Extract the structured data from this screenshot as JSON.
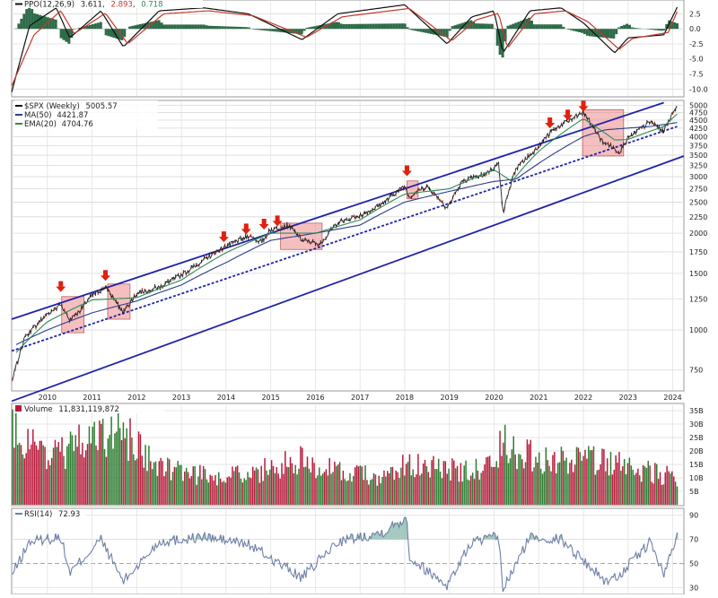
{
  "ppo_panel": {
    "label": "PPO(12,26,9)",
    "ppo_value": "3.611",
    "signal_value": "2.893",
    "histogram_value": "0.718",
    "ticks": [
      "2.5",
      "0.0",
      "-2.5",
      "-5.0",
      "-7.5",
      "-10.0"
    ],
    "colors": {
      "ppo": "#111111",
      "signal": "#c0392b",
      "histogram": "#2e6b48"
    }
  },
  "price_panel": {
    "symbol_label": "$SPX (Weekly)",
    "last_value": "5005.57",
    "ma_label": "MA(50)",
    "ma_value": "4421.87",
    "ema_label": "EMA(20)",
    "ema_value": "4704.76",
    "colors": {
      "up": "#1a1a1a",
      "down": "#d02020",
      "ma": "#2c3e8a",
      "ema": "#2e8b57",
      "channel": "#1f24a8",
      "box": "#e88080",
      "arrow": "#e02010"
    }
  },
  "volume_panel": {
    "label": "Volume",
    "value": "11,831,119,872",
    "ticks": [
      "35B",
      "30B",
      "25B",
      "20B",
      "15B",
      "10B",
      "5B"
    ],
    "colors": {
      "up": "#2e7d32",
      "down": "#b71c3c"
    }
  },
  "rsi_panel": {
    "label": "RSI(14)",
    "value": "72.93",
    "ticks": [
      "90",
      "70",
      "50",
      "30"
    ],
    "colors": {
      "line": "#6f7fa8",
      "fill": "#7fb3a6"
    }
  },
  "chart_data": [
    {
      "type": "line",
      "title": "$SPX (Weekly) 5005.57",
      "scale": "log",
      "x_axis_ticks": [
        "2010",
        "2011",
        "2012",
        "2013",
        "2014",
        "2015",
        "2016",
        "2017",
        "2018",
        "2019",
        "2020",
        "2021",
        "2022",
        "2023",
        "2024"
      ],
      "y_axis_ticks": [
        "5000",
        "4750",
        "4500",
        "4250",
        "4000",
        "3750",
        "3500",
        "3250",
        "3000",
        "2750",
        "2500",
        "2250",
        "2000",
        "1750",
        "1500",
        "1250",
        "1000",
        "750"
      ],
      "ylim": [
        650,
        5150
      ],
      "series": [
        {
          "name": "$SPX",
          "x": [
            2009.2,
            2009.5,
            2010.0,
            2010.3,
            2010.5,
            2010.7,
            2011.0,
            2011.3,
            2011.7,
            2012.0,
            2012.5,
            2013.0,
            2013.5,
            2014.0,
            2014.5,
            2014.8,
            2015.0,
            2015.4,
            2015.7,
            2016.1,
            2016.5,
            2017.0,
            2017.5,
            2018.0,
            2018.1,
            2018.5,
            2018.95,
            2019.3,
            2019.8,
            2020.1,
            2020.2,
            2020.5,
            2020.9,
            2021.3,
            2021.7,
            2022.0,
            2022.4,
            2022.8,
            2023.0,
            2023.5,
            2023.8,
            2024.1
          ],
          "values": [
            680,
            950,
            1120,
            1200,
            1070,
            1140,
            1280,
            1360,
            1130,
            1300,
            1360,
            1480,
            1650,
            1820,
            1960,
            1880,
            2050,
            2110,
            1900,
            1850,
            2160,
            2270,
            2470,
            2820,
            2600,
            2800,
            2400,
            2900,
            3050,
            3300,
            2300,
            3200,
            3600,
            4180,
            4500,
            4770,
            3900,
            3580,
            3950,
            4450,
            4150,
            5005.57
          ]
        },
        {
          "name": "MA(50)",
          "x": [
            2009.3,
            2010.0,
            2011.0,
            2012.0,
            2013.0,
            2014.0,
            2015.0,
            2016.0,
            2017.0,
            2018.0,
            2019.0,
            2020.0,
            2020.5,
            2021.0,
            2022.0,
            2022.5,
            2023.0,
            2023.5,
            2024.1
          ],
          "values": [
            900,
            1000,
            1130,
            1230,
            1380,
            1620,
            1900,
            2000,
            2120,
            2500,
            2700,
            2900,
            2950,
            3300,
            4000,
            4200,
            4250,
            4300,
            4421.87
          ]
        },
        {
          "name": "EMA(20)",
          "x": [
            2009.3,
            2010.0,
            2011.0,
            2012.0,
            2013.0,
            2014.0,
            2015.0,
            2016.0,
            2017.0,
            2018.0,
            2019.0,
            2020.0,
            2020.4,
            2021.0,
            2022.0,
            2022.7,
            2023.0,
            2023.8,
            2024.1
          ],
          "values": [
            850,
            1060,
            1240,
            1260,
            1430,
            1740,
            2000,
            2000,
            2200,
            2650,
            2750,
            3150,
            2900,
            3600,
            4550,
            3900,
            3920,
            4300,
            4704.76
          ]
        }
      ]
    },
    {
      "type": "line",
      "title": "PPO(12,26,9) 3.611, 2.893, 0.718",
      "y_axis_ticks": [
        "2.5",
        "0.0",
        "-2.5",
        "-5.0",
        "-7.5",
        "-10.0"
      ],
      "ylim": [
        -11,
        4.5
      ],
      "series": [
        {
          "name": "PPO",
          "x": [
            2009.2,
            2009.6,
            2010.2,
            2010.5,
            2011.2,
            2011.7,
            2012.5,
            2013.5,
            2014.5,
            2015.7,
            2016.5,
            2018.0,
            2018.95,
            2019.5,
            2020.0,
            2020.2,
            2020.8,
            2021.5,
            2022.0,
            2022.7,
            2023.0,
            2023.8,
            2024.1
          ],
          "values": [
            -10.5,
            0.5,
            3.5,
            -1.5,
            3.0,
            -3.0,
            3.0,
            3.5,
            2.5,
            -1.8,
            2.5,
            4.0,
            -2.5,
            2.0,
            3.0,
            -4.0,
            3.0,
            3.5,
            1.0,
            -4.0,
            -1.5,
            -1.0,
            3.611
          ]
        },
        {
          "name": "Signal",
          "x": [
            2009.2,
            2009.7,
            2010.3,
            2010.6,
            2011.3,
            2011.8,
            2012.6,
            2013.6,
            2014.6,
            2015.8,
            2016.6,
            2018.1,
            2019.05,
            2019.6,
            2020.1,
            2020.3,
            2020.9,
            2021.6,
            2022.1,
            2022.8,
            2023.1,
            2023.9,
            2024.1
          ],
          "values": [
            -9.5,
            -1.0,
            3.0,
            -0.8,
            2.6,
            -2.5,
            2.5,
            3.0,
            2.2,
            -1.4,
            2.0,
            3.4,
            -2.0,
            1.5,
            2.6,
            -3.2,
            2.5,
            3.0,
            1.2,
            -3.4,
            -1.6,
            -0.6,
            2.893
          ]
        }
      ]
    },
    {
      "type": "bar",
      "title": "Volume 11,831,119,872",
      "y_axis_ticks": [
        "35B",
        "30B",
        "25B",
        "20B",
        "15B",
        "10B",
        "5B"
      ],
      "ylim": [
        0,
        37
      ],
      "x": [
        2009.3,
        2010.0,
        2010.4,
        2011.6,
        2012.5,
        2013.5,
        2014.5,
        2015.7,
        2016.5,
        2017.5,
        2018.1,
        2019.0,
        2020.0,
        2020.2,
        2020.6,
        2021.5,
        2022.5,
        2023.5,
        2024.1
      ],
      "values": [
        32,
        22,
        24,
        33,
        16,
        13,
        13,
        20,
        14,
        12,
        18,
        15,
        16,
        28,
        22,
        19,
        19,
        14,
        11.83
      ]
    },
    {
      "type": "line",
      "title": "RSI(14) 72.93",
      "y_axis_ticks": [
        "90",
        "70",
        "50",
        "30"
      ],
      "ylim": [
        25,
        95
      ],
      "x": [
        2009.2,
        2009.6,
        2010.3,
        2010.5,
        2011.2,
        2011.7,
        2012.5,
        2013.5,
        2014.5,
        2015.7,
        2016.5,
        2017.5,
        2018.05,
        2018.1,
        2018.95,
        2019.5,
        2020.1,
        2020.2,
        2020.8,
        2021.5,
        2022.5,
        2022.8,
        2023.5,
        2023.8,
        2024.1
      ],
      "values": [
        40,
        68,
        72,
        42,
        70,
        35,
        68,
        72,
        66,
        38,
        68,
        76,
        88,
        55,
        32,
        68,
        72,
        28,
        72,
        70,
        35,
        40,
        68,
        40,
        72.93
      ]
    }
  ]
}
